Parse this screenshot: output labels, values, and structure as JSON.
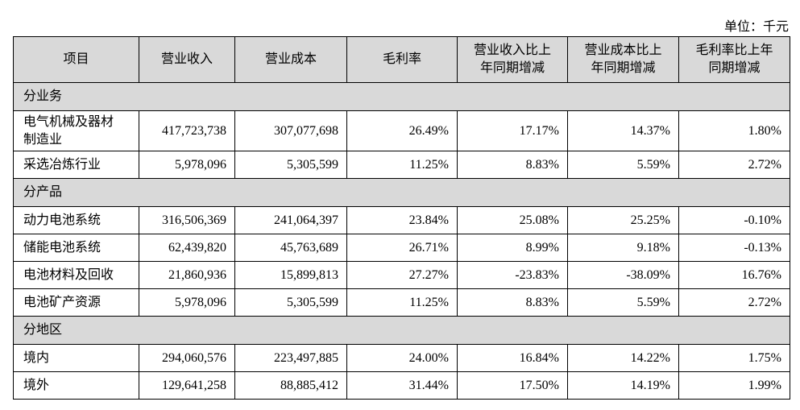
{
  "header": {
    "unit": "单位：千元"
  },
  "table": {
    "columns": [
      "项目",
      "营业收入",
      "营业成本",
      "毛利率",
      "营业收入比上年同期增减",
      "营业成本比上年同期增减",
      "毛利率比上年同期增减"
    ],
    "sections": [
      {
        "title": "分业务",
        "rows": [
          [
            "电气机械及器材制造业",
            "417,723,738",
            "307,077,698",
            "26.49%",
            "17.17%",
            "14.37%",
            "1.80%"
          ],
          [
            "采选冶炼行业",
            "5,978,096",
            "5,305,599",
            "11.25%",
            "8.83%",
            "5.59%",
            "2.72%"
          ]
        ]
      },
      {
        "title": "分产品",
        "rows": [
          [
            "动力电池系统",
            "316,506,369",
            "241,064,397",
            "23.84%",
            "25.08%",
            "25.25%",
            "-0.10%"
          ],
          [
            "储能电池系统",
            "62,439,820",
            "45,763,689",
            "26.71%",
            "8.99%",
            "9.18%",
            "-0.13%"
          ],
          [
            "电池材料及回收",
            "21,860,936",
            "15,899,813",
            "27.27%",
            "-23.83%",
            "-38.09%",
            "16.76%"
          ],
          [
            "电池矿产资源",
            "5,978,096",
            "5,305,599",
            "11.25%",
            "8.83%",
            "5.59%",
            "2.72%"
          ]
        ]
      },
      {
        "title": "分地区",
        "rows": [
          [
            "境内",
            "294,060,576",
            "223,497,885",
            "24.00%",
            "16.84%",
            "14.22%",
            "1.75%"
          ],
          [
            "境外",
            "129,641,258",
            "88,885,412",
            "31.44%",
            "17.50%",
            "14.19%",
            "1.99%"
          ]
        ]
      }
    ]
  }
}
